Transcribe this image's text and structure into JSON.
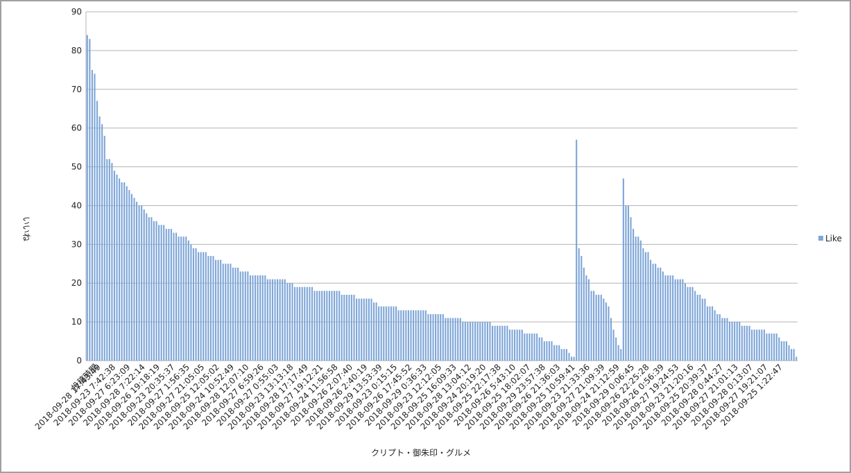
{
  "chart_data": {
    "type": "bar",
    "y_label": "いいね",
    "x_label": "クリプト・御朱印・グルメ",
    "ylim": [
      0,
      90
    ],
    "yticks": [
      0,
      10,
      20,
      30,
      40,
      50,
      60,
      70,
      80,
      90
    ],
    "grid": true,
    "legend": "right",
    "categories": [
      null,
      null,
      null,
      null,
      "投稿時間",
      "2018-09-28 17:43:49",
      null,
      null,
      null,
      null,
      null,
      "2018-09-23 7:42:38",
      null,
      null,
      null,
      null,
      null,
      "2018-09-27 6:23:09",
      null,
      null,
      null,
      null,
      null,
      "2018-09-28 7:22:14",
      null,
      null,
      null,
      null,
      null,
      "2018-09-26 19:18:19",
      null,
      null,
      null,
      null,
      null,
      "2018-09-23 20:35:37",
      null,
      null,
      null,
      null,
      null,
      "2018-09-27 1:56:35",
      null,
      null,
      null,
      null,
      null,
      "2018-09-27 21:05:05",
      null,
      null,
      null,
      null,
      null,
      "2018-09-25 12:05:02",
      null,
      null,
      null,
      null,
      null,
      "2018-09-24 10:52:49",
      null,
      null,
      null,
      null,
      null,
      "2018-09-28 12:07:10",
      null,
      null,
      null,
      null,
      null,
      "2018-09-27 6:59:26",
      null,
      null,
      null,
      null,
      null,
      "2018-09-27 0:55:03",
      null,
      null,
      null,
      null,
      null,
      "2018-09-23 13:13:18",
      null,
      null,
      null,
      null,
      null,
      "2018-09-28 17:17:49",
      null,
      null,
      null,
      null,
      null,
      "2018-09-27 19:12:21",
      null,
      null,
      null,
      null,
      null,
      "2018-09-24 11:56:58",
      null,
      null,
      null,
      null,
      null,
      "2018-09-26 2:07:40",
      null,
      null,
      null,
      null,
      null,
      "2018-09-26 2:40:19",
      null,
      null,
      null,
      null,
      null,
      "2018-09-29 13:53:39",
      null,
      null,
      null,
      null,
      null,
      "2018-09-23 0:15:15",
      null,
      null,
      null,
      null,
      null,
      "2018-09-26 17:45:52",
      null,
      null,
      null,
      null,
      null,
      "2018-09-29 0:36:33",
      null,
      null,
      null,
      null,
      null,
      "2018-09-23 12:12:05",
      null,
      null,
      null,
      null,
      null,
      "2018-09-25 16:09:33",
      null,
      null,
      null,
      null,
      null,
      "2018-09-28 13:04:12",
      null,
      null,
      null,
      null,
      null,
      "2018-09-24 20:19:20",
      null,
      null,
      null,
      null,
      null,
      "2018-09-25 22:17:38",
      null,
      null,
      null,
      null,
      null,
      "2018-09-26 5:43:10",
      null,
      null,
      null,
      null,
      null,
      "2018-09-25 18:02:07",
      null,
      null,
      null,
      null,
      null,
      "2018-09-29 23:57:38",
      null,
      null,
      null,
      null,
      null,
      "2018-09-26 21:36:03",
      null,
      null,
      null,
      null,
      null,
      "2018-09-25 10:59:41",
      null,
      null,
      null,
      null,
      null,
      "2018-09-23 21:33:36",
      null,
      null,
      null,
      null,
      null,
      "2018-09-27 21:09:39",
      null,
      null,
      null,
      null,
      null,
      "2018-09-24 21:12:59",
      null,
      null,
      null,
      null,
      null,
      "2018-09-29 0:06:45",
      null,
      null,
      null,
      null,
      null,
      "2018-09-26 22:25:28",
      null,
      null,
      null,
      null,
      null,
      "2018-09-26 0:56:39",
      null,
      null,
      null,
      null,
      null,
      "2018-09-27 19:24:53",
      null,
      null,
      null,
      null,
      null,
      "2018-09-23 21:20:16",
      null,
      null,
      null,
      null,
      null,
      "2018-09-25 20:39:37",
      null,
      null,
      null,
      null,
      null,
      "2018-09-28 0:44:27",
      null,
      null,
      null,
      null,
      null,
      "2018-09-27 21:01:13",
      null,
      null,
      null,
      null,
      null,
      "2018-09-28 0:13:07",
      null,
      null,
      null,
      null,
      null,
      "2018-09-27 19:21:07",
      null,
      null,
      null,
      null,
      null,
      "2018-09-25 1:22:47",
      null,
      null,
      null,
      null,
      null,
      null
    ],
    "series": [
      {
        "name": "Like",
        "color": "#7ea6d8",
        "values": [
          84,
          83,
          75,
          74,
          67,
          63,
          61,
          58,
          52,
          52,
          51,
          49,
          48,
          47,
          46,
          46,
          45,
          44,
          43,
          42,
          41,
          40,
          40,
          39,
          38,
          37,
          37,
          36,
          36,
          35,
          35,
          35,
          34,
          34,
          34,
          33,
          33,
          32,
          32,
          32,
          32,
          31,
          30,
          29,
          29,
          28,
          28,
          28,
          28,
          27,
          27,
          27,
          26,
          26,
          26,
          25,
          25,
          25,
          25,
          24,
          24,
          24,
          23,
          23,
          23,
          23,
          22,
          22,
          22,
          22,
          22,
          22,
          22,
          21,
          21,
          21,
          21,
          21,
          21,
          21,
          21,
          20,
          20,
          20,
          19,
          19,
          19,
          19,
          19,
          19,
          19,
          19,
          18,
          18,
          18,
          18,
          18,
          18,
          18,
          18,
          18,
          18,
          18,
          17,
          17,
          17,
          17,
          17,
          17,
          16,
          16,
          16,
          16,
          16,
          16,
          16,
          15,
          15,
          14,
          14,
          14,
          14,
          14,
          14,
          14,
          14,
          13,
          13,
          13,
          13,
          13,
          13,
          13,
          13,
          13,
          13,
          13,
          13,
          12,
          12,
          12,
          12,
          12,
          12,
          12,
          11,
          11,
          11,
          11,
          11,
          11,
          11,
          10,
          10,
          10,
          10,
          10,
          10,
          10,
          10,
          10,
          10,
          10,
          10,
          9,
          9,
          9,
          9,
          9,
          9,
          9,
          8,
          8,
          8,
          8,
          8,
          8,
          7,
          7,
          7,
          7,
          7,
          7,
          6,
          6,
          5,
          5,
          5,
          5,
          4,
          4,
          4,
          3,
          3,
          3,
          2,
          1,
          1,
          57,
          29,
          27,
          24,
          22,
          21,
          18,
          18,
          17,
          17,
          17,
          16,
          15,
          14,
          11,
          8,
          6,
          4,
          3,
          47,
          40,
          40,
          37,
          34,
          32,
          32,
          31,
          29,
          28,
          28,
          26,
          25,
          25,
          24,
          24,
          23,
          22,
          22,
          22,
          22,
          21,
          21,
          21,
          21,
          20,
          19,
          19,
          19,
          18,
          17,
          17,
          16,
          16,
          14,
          14,
          14,
          13,
          12,
          12,
          11,
          11,
          11,
          10,
          10,
          10,
          10,
          10,
          9,
          9,
          9,
          9,
          8,
          8,
          8,
          8,
          8,
          8,
          7,
          7,
          7,
          7,
          7,
          6,
          5,
          5,
          5,
          4,
          3,
          3,
          1
        ]
      }
    ]
  }
}
